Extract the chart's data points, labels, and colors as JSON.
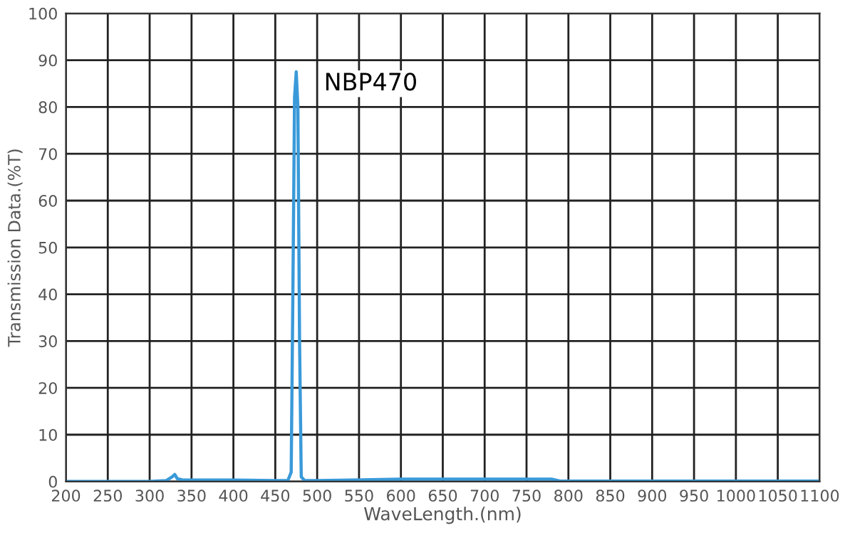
{
  "chart_data": {
    "type": "line",
    "xlabel": "WaveLength.(nm)",
    "ylabel": "Transmission Data.(%T)",
    "series": [
      {
        "color": "#3a9ad9",
        "x": [
          200,
          300,
          320,
          327,
          330,
          333,
          340,
          360,
          400,
          450,
          465,
          469,
          471,
          473,
          475,
          477,
          479,
          481,
          485,
          500,
          600,
          700,
          780,
          790,
          900,
          1000,
          1100
        ],
        "values": [
          0,
          0,
          0.2,
          1.0,
          1.5,
          0.6,
          0.3,
          0.3,
          0.3,
          0.2,
          0.2,
          2,
          40,
          82,
          87.5,
          80,
          30,
          1,
          0.2,
          0.2,
          0.5,
          0.5,
          0.5,
          0.1,
          0.1,
          0.1,
          0.1
        ]
      }
    ],
    "annotations": [
      {
        "text": "NBP470",
        "x": 475,
        "y": 87.5
      }
    ],
    "xlim": [
      200,
      1100
    ],
    "xticks": [
      200,
      250,
      300,
      350,
      400,
      450,
      500,
      550,
      600,
      650,
      700,
      750,
      800,
      850,
      900,
      950,
      1000,
      1050,
      1100
    ],
    "ylim": [
      0,
      100
    ],
    "yticks": [
      0,
      10,
      20,
      30,
      40,
      50,
      60,
      70,
      80,
      90,
      100
    ],
    "grid": true,
    "legend": false,
    "marker": "none",
    "line_style": "solid"
  }
}
